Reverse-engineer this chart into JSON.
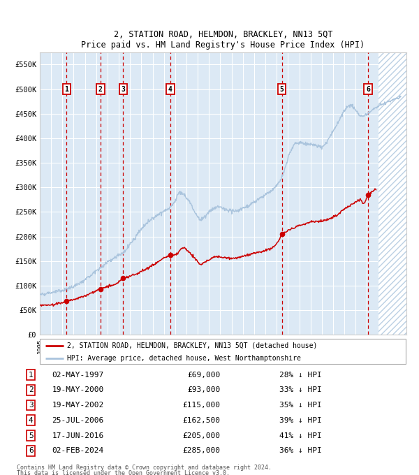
{
  "title": "2, STATION ROAD, HELMDON, BRACKLEY, NN13 5QT",
  "subtitle": "Price paid vs. HM Land Registry's House Price Index (HPI)",
  "legend_line1": "2, STATION ROAD, HELMDON, BRACKLEY, NN13 5QT (detached house)",
  "legend_line2": "HPI: Average price, detached house, West Northamptonshire",
  "footnote1": "Contains HM Land Registry data © Crown copyright and database right 2024.",
  "footnote2": "This data is licensed under the Open Government Licence v3.0.",
  "hpi_color": "#aac4dd",
  "price_color": "#cc0000",
  "background_color": "#dce9f5",
  "hatch_color": "#b8d0e8",
  "grid_color": "#ffffff",
  "xmin": 1995.0,
  "xmax": 2027.5,
  "ymin": 0,
  "ymax": 575000,
  "yticks": [
    0,
    50000,
    100000,
    150000,
    200000,
    250000,
    300000,
    350000,
    400000,
    450000,
    500000,
    550000
  ],
  "ytick_labels": [
    "£0",
    "£50K",
    "£100K",
    "£150K",
    "£200K",
    "£250K",
    "£300K",
    "£350K",
    "£400K",
    "£450K",
    "£500K",
    "£550K"
  ],
  "hatch_start": 2025.0,
  "sales": [
    {
      "num": 1,
      "date": "02-MAY-1997",
      "year": 1997.37,
      "price": 69000,
      "pct": "28%"
    },
    {
      "num": 2,
      "date": "19-MAY-2000",
      "year": 2000.38,
      "price": 93000,
      "pct": "33%"
    },
    {
      "num": 3,
      "date": "19-MAY-2002",
      "year": 2002.38,
      "price": 115000,
      "pct": "35%"
    },
    {
      "num": 4,
      "date": "25-JUL-2006",
      "year": 2006.57,
      "price": 162500,
      "pct": "39%"
    },
    {
      "num": 5,
      "date": "17-JUN-2016",
      "year": 2016.46,
      "price": 205000,
      "pct": "41%"
    },
    {
      "num": 6,
      "date": "02-FEB-2024",
      "year": 2024.09,
      "price": 285000,
      "pct": "36%"
    }
  ],
  "table_rows": [
    {
      "num": 1,
      "date": "02-MAY-1997",
      "price": "£69,000",
      "pct": "28% ↓ HPI"
    },
    {
      "num": 2,
      "date": "19-MAY-2000",
      "price": "£93,000",
      "pct": "33% ↓ HPI"
    },
    {
      "num": 3,
      "date": "19-MAY-2002",
      "price": "£115,000",
      "pct": "35% ↓ HPI"
    },
    {
      "num": 4,
      "date": "25-JUL-2006",
      "price": "£162,500",
      "pct": "39% ↓ HPI"
    },
    {
      "num": 5,
      "date": "17-JUN-2016",
      "price": "£205,000",
      "pct": "41% ↓ HPI"
    },
    {
      "num": 6,
      "date": "02-FEB-2024",
      "price": "£285,000",
      "pct": "36% ↓ HPI"
    }
  ],
  "hpi_anchors": [
    [
      1995.0,
      82000
    ],
    [
      1996.0,
      86000
    ],
    [
      1997.0,
      90000
    ],
    [
      1998.0,
      98000
    ],
    [
      1999.0,
      112000
    ],
    [
      2000.0,
      130000
    ],
    [
      2001.0,
      148000
    ],
    [
      2001.5,
      155000
    ],
    [
      2002.0,
      163000
    ],
    [
      2002.5,
      168000
    ],
    [
      2003.0,
      185000
    ],
    [
      2003.5,
      200000
    ],
    [
      2004.0,
      215000
    ],
    [
      2004.5,
      228000
    ],
    [
      2005.0,
      238000
    ],
    [
      2005.5,
      245000
    ],
    [
      2006.0,
      252000
    ],
    [
      2006.5,
      258000
    ],
    [
      2007.0,
      272000
    ],
    [
      2007.3,
      290000
    ],
    [
      2007.8,
      285000
    ],
    [
      2008.3,
      270000
    ],
    [
      2008.8,
      248000
    ],
    [
      2009.2,
      233000
    ],
    [
      2009.5,
      238000
    ],
    [
      2010.0,
      250000
    ],
    [
      2010.5,
      258000
    ],
    [
      2011.0,
      260000
    ],
    [
      2011.5,
      255000
    ],
    [
      2012.0,
      253000
    ],
    [
      2012.5,
      252000
    ],
    [
      2013.0,
      258000
    ],
    [
      2013.5,
      262000
    ],
    [
      2014.0,
      270000
    ],
    [
      2014.5,
      278000
    ],
    [
      2015.0,
      285000
    ],
    [
      2015.5,
      292000
    ],
    [
      2016.0,
      305000
    ],
    [
      2016.5,
      322000
    ],
    [
      2017.0,
      360000
    ],
    [
      2017.3,
      378000
    ],
    [
      2017.6,
      388000
    ],
    [
      2018.0,
      392000
    ],
    [
      2018.5,
      388000
    ],
    [
      2019.0,
      388000
    ],
    [
      2019.5,
      385000
    ],
    [
      2020.0,
      382000
    ],
    [
      2020.3,
      388000
    ],
    [
      2020.6,
      398000
    ],
    [
      2021.0,
      415000
    ],
    [
      2021.3,
      428000
    ],
    [
      2021.6,
      440000
    ],
    [
      2022.0,
      455000
    ],
    [
      2022.3,
      465000
    ],
    [
      2022.6,
      468000
    ],
    [
      2023.0,
      458000
    ],
    [
      2023.3,
      448000
    ],
    [
      2023.6,
      445000
    ],
    [
      2024.0,
      448000
    ],
    [
      2024.3,
      455000
    ],
    [
      2024.6,
      460000
    ],
    [
      2025.0,
      465000
    ],
    [
      2025.5,
      470000
    ],
    [
      2026.0,
      476000
    ],
    [
      2026.5,
      480000
    ],
    [
      2027.0,
      485000
    ]
  ],
  "price_anchors": [
    [
      1995.0,
      60000
    ],
    [
      1995.5,
      60500
    ],
    [
      1996.0,
      61000
    ],
    [
      1996.5,
      63000
    ],
    [
      1997.0,
      66000
    ],
    [
      1997.37,
      69000
    ],
    [
      1997.8,
      71000
    ],
    [
      1998.3,
      74000
    ],
    [
      1998.8,
      78000
    ],
    [
      1999.3,
      82000
    ],
    [
      1999.8,
      88000
    ],
    [
      2000.38,
      93000
    ],
    [
      2000.8,
      97000
    ],
    [
      2001.2,
      100000
    ],
    [
      2001.6,
      102000
    ],
    [
      2002.0,
      108000
    ],
    [
      2002.38,
      115000
    ],
    [
      2002.8,
      118000
    ],
    [
      2003.2,
      121000
    ],
    [
      2003.6,
      124000
    ],
    [
      2004.0,
      129000
    ],
    [
      2004.4,
      134000
    ],
    [
      2004.8,
      139000
    ],
    [
      2005.2,
      144000
    ],
    [
      2005.6,
      151000
    ],
    [
      2006.0,
      157000
    ],
    [
      2006.57,
      162500
    ],
    [
      2006.9,
      163000
    ],
    [
      2007.2,
      165000
    ],
    [
      2007.5,
      175000
    ],
    [
      2007.8,
      178000
    ],
    [
      2008.1,
      172000
    ],
    [
      2008.5,
      162000
    ],
    [
      2008.9,
      152000
    ],
    [
      2009.2,
      143000
    ],
    [
      2009.5,
      146000
    ],
    [
      2009.8,
      150000
    ],
    [
      2010.2,
      155000
    ],
    [
      2010.6,
      160000
    ],
    [
      2011.0,
      159000
    ],
    [
      2011.4,
      157000
    ],
    [
      2011.8,
      156000
    ],
    [
      2012.2,
      156000
    ],
    [
      2012.6,
      157000
    ],
    [
      2013.0,
      160000
    ],
    [
      2013.4,
      162000
    ],
    [
      2013.8,
      165000
    ],
    [
      2014.2,
      167000
    ],
    [
      2014.6,
      169000
    ],
    [
      2015.0,
      172000
    ],
    [
      2015.4,
      175000
    ],
    [
      2015.8,
      180000
    ],
    [
      2016.2,
      192000
    ],
    [
      2016.46,
      205000
    ],
    [
      2016.8,
      210000
    ],
    [
      2017.2,
      214000
    ],
    [
      2017.6,
      218000
    ],
    [
      2018.0,
      222000
    ],
    [
      2018.4,
      225000
    ],
    [
      2018.8,
      228000
    ],
    [
      2019.2,
      230000
    ],
    [
      2019.6,
      231000
    ],
    [
      2020.0,
      232000
    ],
    [
      2020.4,
      234000
    ],
    [
      2020.8,
      237000
    ],
    [
      2021.2,
      242000
    ],
    [
      2021.6,
      248000
    ],
    [
      2022.0,
      256000
    ],
    [
      2022.4,
      262000
    ],
    [
      2022.8,
      267000
    ],
    [
      2023.0,
      270000
    ],
    [
      2023.2,
      273000
    ],
    [
      2023.4,
      275000
    ],
    [
      2023.6,
      270000
    ],
    [
      2023.8,
      268000
    ],
    [
      2024.09,
      285000
    ],
    [
      2024.4,
      292000
    ],
    [
      2024.8,
      297000
    ]
  ]
}
